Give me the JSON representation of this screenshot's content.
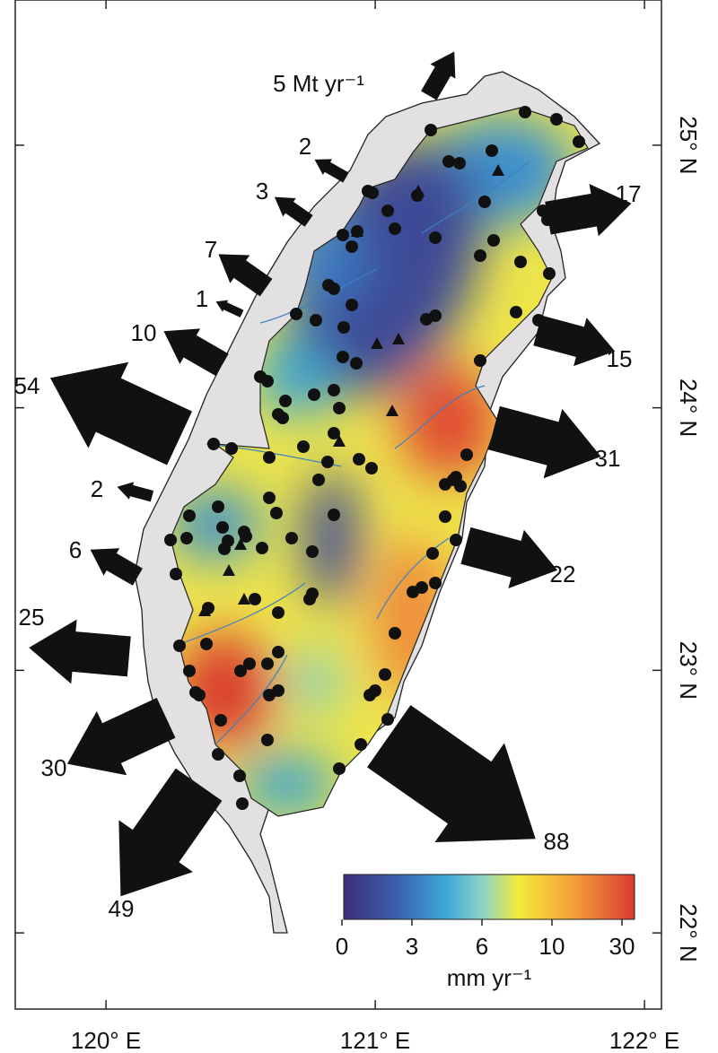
{
  "map": {
    "lon_range": [
      119.663,
      122.063
    ],
    "lat_range": [
      21.71,
      25.553
    ],
    "lon_ticks": [
      {
        "value": 120,
        "label": "120° E"
      },
      {
        "value": 121,
        "label": "121° E"
      },
      {
        "value": 122,
        "label": "122° E"
      }
    ],
    "lat_ticks": [
      {
        "value": 22,
        "label": "22° N"
      },
      {
        "value": 23,
        "label": "23° N"
      },
      {
        "value": 24,
        "label": "24° N"
      },
      {
        "value": 25,
        "label": "25° N"
      }
    ]
  },
  "reference_arrow": {
    "value": 5,
    "label": "5 Mt yr⁻¹"
  },
  "flux_arrows": [
    2,
    3,
    7,
    1,
    10,
    54,
    2,
    6,
    25,
    30,
    49,
    88,
    22,
    31,
    15,
    17
  ],
  "colorbar": {
    "ticks": [
      0,
      3,
      6,
      10,
      30
    ],
    "label": "mm yr⁻¹"
  }
}
